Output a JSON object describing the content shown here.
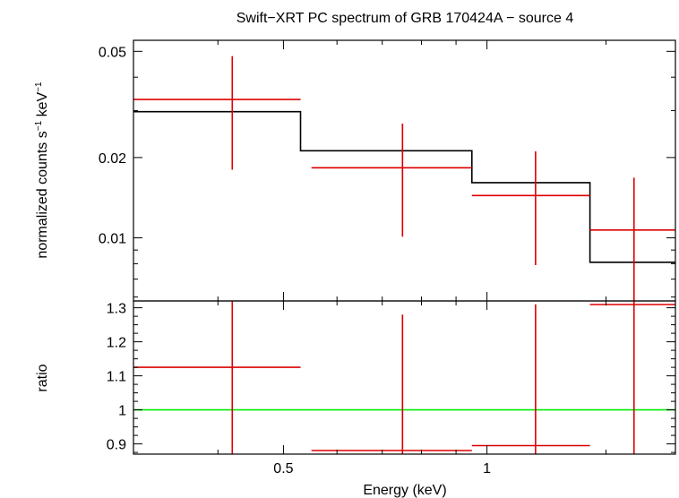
{
  "chart_data": [
    {
      "type": "line",
      "panel": "spectrum",
      "title": "Swift−XRT PC spectrum of GRB 170424A − source 4",
      "ylabel": "normalized counts s⁻¹ keV⁻¹",
      "ylabel_parts": {
        "base": "normalized counts s",
        "exp1": "−1",
        "mid": " keV",
        "exp2": "−1"
      },
      "xlabel": "Energy (keV)",
      "xscale": "log",
      "yscale": "log",
      "xlim": [
        0.3,
        1.9
      ],
      "ylim": [
        0.0058,
        0.055
      ],
      "x_ticks": [
        {
          "value": 0.5,
          "label": "0.5"
        },
        {
          "value": 1,
          "label": "1"
        }
      ],
      "y_ticks": [
        {
          "value": 0.01,
          "label": "0.01"
        },
        {
          "value": 0.02,
          "label": "0.02"
        },
        {
          "value": 0.05,
          "label": "0.05"
        }
      ],
      "colors": {
        "data": "#dd0000",
        "model": "#000000"
      },
      "data_points": [
        {
          "xlo": 0.3,
          "xhi": 0.53,
          "x": 0.42,
          "y": 0.033,
          "ylo": 0.018,
          "yhi": 0.048
        },
        {
          "xlo": 0.55,
          "xhi": 0.95,
          "x": 0.75,
          "y": 0.0183,
          "ylo": 0.0101,
          "yhi": 0.0268
        },
        {
          "xlo": 0.95,
          "xhi": 1.42,
          "x": 1.18,
          "y": 0.0144,
          "ylo": 0.0079,
          "yhi": 0.0211
        },
        {
          "xlo": 1.42,
          "xhi": 1.9,
          "x": 1.65,
          "y": 0.0107,
          "ylo": 0.0058,
          "yhi": 0.0168
        }
      ],
      "model_steps": [
        {
          "xlo": 0.3,
          "xhi": 0.53,
          "y": 0.0297
        },
        {
          "xlo": 0.53,
          "xhi": 0.95,
          "y": 0.0212
        },
        {
          "xlo": 0.95,
          "xhi": 1.42,
          "y": 0.0161
        },
        {
          "xlo": 1.42,
          "xhi": 1.9,
          "y": 0.0081
        }
      ]
    },
    {
      "type": "line",
      "panel": "ratio",
      "ylabel": "ratio",
      "xscale": "log",
      "xlim": [
        0.3,
        1.9
      ],
      "ylim": [
        0.87,
        1.32
      ],
      "y_ticks": [
        {
          "value": 0.9,
          "label": "0.9"
        },
        {
          "value": 1,
          "label": "1"
        },
        {
          "value": 1.1,
          "label": "1.1"
        },
        {
          "value": 1.2,
          "label": "1.2"
        },
        {
          "value": 1.3,
          "label": "1.3"
        }
      ],
      "reference_line": {
        "y": 1,
        "color": "#00ee00"
      },
      "colors": {
        "data": "#dd0000"
      },
      "data_points": [
        {
          "xlo": 0.3,
          "xhi": 0.53,
          "x": 0.42,
          "y": 1.125,
          "ylo": 0.87,
          "yhi": 1.32
        },
        {
          "xlo": 0.55,
          "xhi": 0.95,
          "x": 0.75,
          "y": 0.875,
          "ylo": 0.87,
          "yhi": 1.28
        },
        {
          "xlo": 0.95,
          "xhi": 1.42,
          "x": 1.18,
          "y": 0.895,
          "ylo": 0.87,
          "yhi": 1.31
        },
        {
          "xlo": 1.42,
          "xhi": 1.9,
          "x": 1.65,
          "y": 1.315,
          "ylo": 0.87,
          "yhi": 1.32
        }
      ]
    }
  ]
}
